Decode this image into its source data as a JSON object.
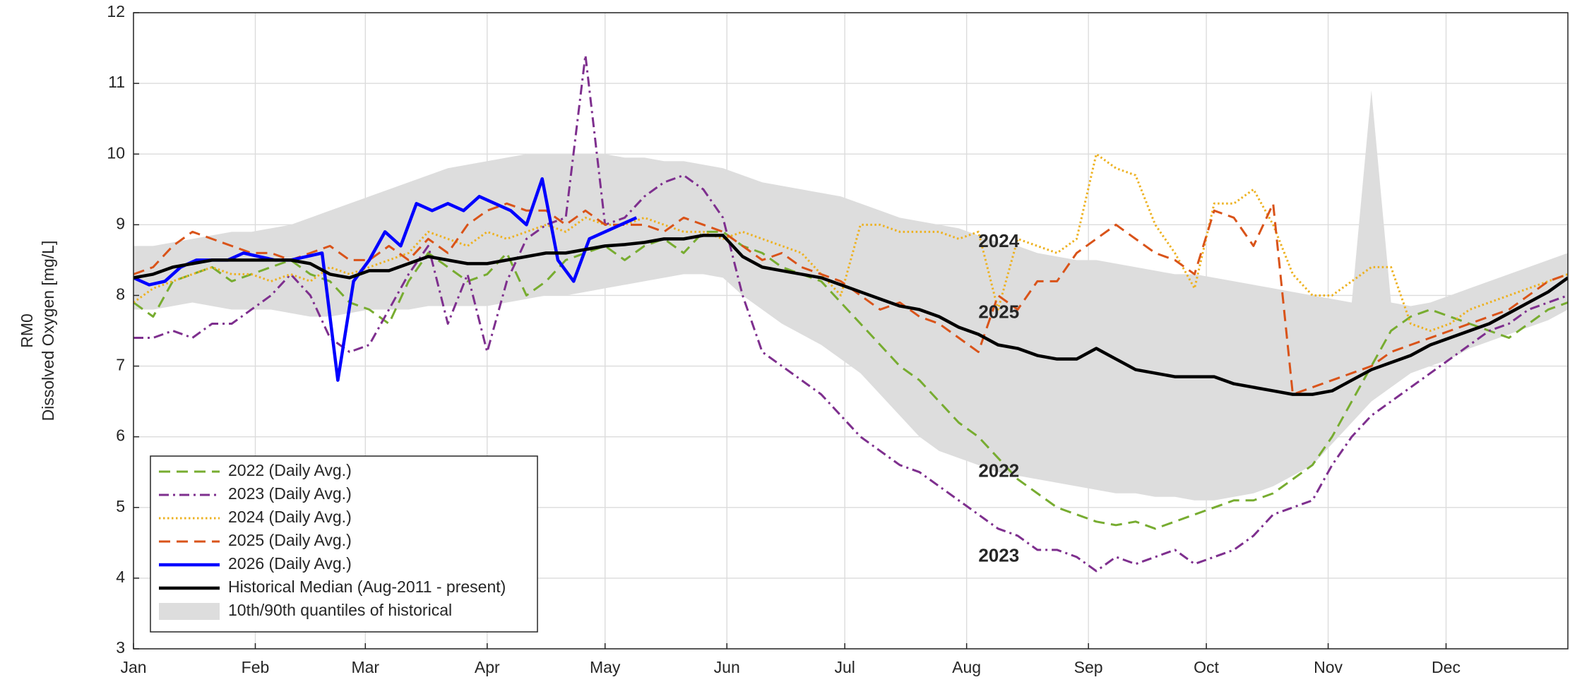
{
  "chart_data": {
    "type": "line",
    "ylabel": [
      "RM0",
      "Dissolved Oxygen [mg/L]"
    ],
    "xlim": [
      0,
      365
    ],
    "ylim": [
      3,
      12
    ],
    "xticks": [
      {
        "value": 0,
        "label": "Jan"
      },
      {
        "value": 31,
        "label": "Feb"
      },
      {
        "value": 59,
        "label": "Mar"
      },
      {
        "value": 90,
        "label": "Apr"
      },
      {
        "value": 120,
        "label": "May"
      },
      {
        "value": 151,
        "label": "Jun"
      },
      {
        "value": 181,
        "label": "Jul"
      },
      {
        "value": 212,
        "label": "Aug"
      },
      {
        "value": 243,
        "label": "Sep"
      },
      {
        "value": 273,
        "label": "Oct"
      },
      {
        "value": 304,
        "label": "Nov"
      },
      {
        "value": 334,
        "label": "Dec"
      }
    ],
    "yticks": [
      3,
      4,
      5,
      6,
      7,
      8,
      9,
      10,
      11,
      12
    ],
    "grid": true,
    "legend": "lower left",
    "x": [
      0,
      5,
      10,
      15,
      20,
      25,
      30,
      35,
      40,
      45,
      50,
      55,
      60,
      65,
      70,
      75,
      80,
      85,
      90,
      95,
      100,
      105,
      110,
      115,
      120,
      125,
      130,
      135,
      140,
      145,
      150,
      155,
      160,
      165,
      170,
      175,
      180,
      185,
      190,
      195,
      200,
      205,
      210,
      215,
      220,
      225,
      230,
      235,
      240,
      245,
      250,
      255,
      260,
      265,
      270,
      275,
      280,
      285,
      290,
      295,
      300,
      305,
      310,
      315,
      320,
      325,
      330,
      335,
      340,
      345,
      350,
      355,
      360,
      365
    ],
    "series": [
      {
        "name": "2022 (Daily Avg.)",
        "color": "#77ac30",
        "dash": "dashed",
        "values": [
          7.9,
          7.7,
          8.2,
          8.3,
          8.4,
          8.2,
          8.3,
          8.4,
          8.5,
          8.3,
          8.2,
          7.9,
          7.8,
          7.6,
          8.2,
          8.6,
          8.4,
          8.2,
          8.3,
          8.6,
          8.0,
          8.2,
          8.5,
          8.6,
          8.7,
          8.5,
          8.7,
          8.8,
          8.6,
          8.9,
          8.9,
          8.7,
          8.6,
          8.4,
          8.3,
          8.2,
          7.9,
          7.6,
          7.3,
          7.0,
          6.8,
          6.5,
          6.2,
          6.0,
          5.7,
          5.4,
          5.2,
          5.0,
          4.9,
          4.8,
          4.75,
          4.8,
          4.7,
          4.8,
          4.9,
          5.0,
          5.1,
          5.1,
          5.2,
          5.4,
          5.6,
          6.0,
          6.5,
          7.0,
          7.5,
          7.7,
          7.8,
          7.7,
          7.6,
          7.5,
          7.4,
          7.6,
          7.8,
          7.9
        ]
      },
      {
        "name": "2023 (Daily Avg.)",
        "color": "#7e2f8e",
        "dash": "dashdot",
        "values": [
          7.4,
          7.4,
          7.5,
          7.4,
          7.6,
          7.6,
          7.8,
          8.0,
          8.3,
          8.0,
          7.4,
          7.2,
          7.3,
          7.8,
          8.3,
          8.7,
          7.6,
          8.3,
          7.2,
          8.2,
          8.8,
          9.0,
          9.1,
          11.4,
          9.0,
          9.1,
          9.4,
          9.6,
          9.7,
          9.5,
          9.1,
          8.0,
          7.2,
          7.0,
          6.8,
          6.6,
          6.3,
          6.0,
          5.8,
          5.6,
          5.5,
          5.3,
          5.1,
          4.9,
          4.7,
          4.6,
          4.4,
          4.4,
          4.3,
          4.1,
          4.3,
          4.2,
          4.3,
          4.4,
          4.2,
          4.3,
          4.4,
          4.6,
          4.9,
          5.0,
          5.1,
          5.6,
          6.0,
          6.3,
          6.5,
          6.7,
          6.9,
          7.1,
          7.3,
          7.5,
          7.6,
          7.8,
          7.9,
          8.0
        ]
      },
      {
        "name": "2024 (Daily Avg.)",
        "color": "#edb120",
        "dash": "dotted",
        "values": [
          7.9,
          8.1,
          8.2,
          8.3,
          8.4,
          8.3,
          8.3,
          8.2,
          8.3,
          8.2,
          8.4,
          8.3,
          8.4,
          8.5,
          8.6,
          8.9,
          8.8,
          8.7,
          8.9,
          8.8,
          8.9,
          9.0,
          8.9,
          9.1,
          9.0,
          9.0,
          9.1,
          9.0,
          8.9,
          8.9,
          8.8,
          8.9,
          8.8,
          8.7,
          8.6,
          8.3,
          8.0,
          9.0,
          9.0,
          8.9,
          8.9,
          8.9,
          8.8,
          8.9,
          7.8,
          8.8,
          8.7,
          8.6,
          8.8,
          10.0,
          9.8,
          9.7,
          9.0,
          8.6,
          8.1,
          9.3,
          9.3,
          9.5,
          9.0,
          8.3,
          8.0,
          8.0,
          8.2,
          8.4,
          8.4,
          7.6,
          7.5,
          7.6,
          7.8,
          7.9,
          8.0,
          8.1,
          8.2,
          8.3
        ]
      },
      {
        "name": "2025 (Daily Avg.)",
        "color": "#d95319",
        "dash": "dashed",
        "values": [
          8.3,
          8.4,
          8.7,
          8.9,
          8.8,
          8.7,
          8.6,
          8.6,
          8.5,
          8.6,
          8.7,
          8.5,
          8.5,
          8.7,
          8.5,
          8.8,
          8.6,
          9.0,
          9.2,
          9.3,
          9.2,
          9.2,
          9.0,
          9.2,
          9.0,
          9.0,
          9.0,
          8.9,
          9.1,
          9.0,
          8.9,
          8.7,
          8.5,
          8.6,
          8.4,
          8.3,
          8.2,
          8.0,
          7.8,
          7.9,
          7.7,
          7.6,
          7.4,
          7.2,
          8.0,
          7.8,
          8.2,
          8.2,
          8.6,
          8.8,
          9.0,
          8.8,
          8.6,
          8.5,
          8.3,
          9.2,
          9.1,
          8.7,
          9.3,
          6.6,
          6.7,
          6.8,
          6.9,
          7.0,
          7.2,
          7.3,
          7.4,
          7.5,
          7.6,
          7.7,
          7.8,
          8.0,
          8.2,
          8.3
        ]
      },
      {
        "name": "2026 (Daily Avg.)",
        "color": "#0000ff",
        "dash": "solid",
        "x": [
          0,
          4,
          8,
          12,
          16,
          20,
          24,
          28,
          32,
          36,
          40,
          44,
          48,
          52,
          56,
          60,
          64,
          68,
          72,
          76,
          80,
          84,
          88,
          92,
          96,
          100,
          104,
          108,
          112,
          116,
          120,
          124,
          128
        ],
        "values": [
          8.25,
          8.15,
          8.2,
          8.4,
          8.5,
          8.5,
          8.5,
          8.6,
          8.55,
          8.5,
          8.5,
          8.55,
          8.6,
          6.8,
          8.2,
          8.5,
          8.9,
          8.7,
          9.3,
          9.2,
          9.3,
          9.2,
          9.4,
          9.3,
          9.2,
          9.0,
          9.65,
          8.5,
          8.2,
          8.8,
          8.9,
          9.0,
          9.1
        ]
      },
      {
        "name": "Historical Median (Aug-2011 - present)",
        "color": "#000000",
        "dash": "solid",
        "values": [
          8.25,
          8.3,
          8.4,
          8.45,
          8.5,
          8.5,
          8.5,
          8.5,
          8.5,
          8.45,
          8.3,
          8.25,
          8.35,
          8.35,
          8.45,
          8.55,
          8.5,
          8.45,
          8.45,
          8.5,
          8.55,
          8.6,
          8.6,
          8.65,
          8.7,
          8.72,
          8.75,
          8.8,
          8.8,
          8.85,
          8.85,
          8.55,
          8.4,
          8.35,
          8.3,
          8.25,
          8.15,
          8.05,
          7.95,
          7.85,
          7.8,
          7.7,
          7.55,
          7.45,
          7.3,
          7.25,
          7.15,
          7.1,
          7.1,
          7.25,
          7.1,
          6.95,
          6.9,
          6.85,
          6.85,
          6.85,
          6.75,
          6.7,
          6.65,
          6.6,
          6.6,
          6.65,
          6.8,
          6.95,
          7.05,
          7.15,
          7.3,
          7.4,
          7.5,
          7.6,
          7.75,
          7.9,
          8.05,
          8.25
        ]
      }
    ],
    "band": {
      "name": "10th/90th quantiles of historical",
      "color": "#dddddd",
      "upper": [
        8.7,
        8.7,
        8.75,
        8.8,
        8.85,
        8.9,
        8.9,
        8.95,
        9.0,
        9.1,
        9.2,
        9.3,
        9.4,
        9.5,
        9.6,
        9.7,
        9.8,
        9.85,
        9.9,
        9.95,
        10.0,
        10.0,
        10.0,
        10.0,
        10.0,
        9.95,
        9.95,
        9.9,
        9.9,
        9.85,
        9.8,
        9.7,
        9.6,
        9.55,
        9.5,
        9.45,
        9.4,
        9.3,
        9.2,
        9.1,
        9.05,
        9.0,
        8.95,
        8.85,
        8.75,
        8.7,
        8.6,
        8.55,
        8.5,
        8.5,
        8.45,
        8.4,
        8.35,
        8.3,
        8.3,
        8.25,
        8.2,
        8.15,
        8.1,
        8.05,
        8.0,
        7.95,
        7.9,
        10.9,
        7.9,
        7.85,
        7.9,
        8.0,
        8.1,
        8.2,
        8.3,
        8.4,
        8.5,
        8.6
      ],
      "lower": [
        7.8,
        7.8,
        7.85,
        7.9,
        7.85,
        7.8,
        7.8,
        7.8,
        7.75,
        7.7,
        7.7,
        7.75,
        7.8,
        7.8,
        7.8,
        7.85,
        7.85,
        7.85,
        7.85,
        7.9,
        7.95,
        8.0,
        8.0,
        8.05,
        8.1,
        8.15,
        8.2,
        8.25,
        8.3,
        8.3,
        8.25,
        8.0,
        7.8,
        7.6,
        7.45,
        7.3,
        7.1,
        6.9,
        6.6,
        6.3,
        6.0,
        5.8,
        5.7,
        5.6,
        5.5,
        5.45,
        5.4,
        5.35,
        5.3,
        5.25,
        5.2,
        5.2,
        5.15,
        5.15,
        5.1,
        5.1,
        5.15,
        5.2,
        5.3,
        5.45,
        5.6,
        5.9,
        6.2,
        6.5,
        6.7,
        6.9,
        7.0,
        7.1,
        7.25,
        7.35,
        7.45,
        7.55,
        7.65,
        7.8
      ]
    },
    "annotations": [
      {
        "text": "2024",
        "x": 215,
        "y": 8.75,
        "color": "#edb120"
      },
      {
        "text": "2025",
        "x": 215,
        "y": 7.75,
        "color": "#d95319"
      },
      {
        "text": "2022",
        "x": 215,
        "y": 5.5,
        "color": "#77ac30"
      },
      {
        "text": "2023",
        "x": 215,
        "y": 4.3,
        "color": "#7e2f8e"
      }
    ]
  }
}
